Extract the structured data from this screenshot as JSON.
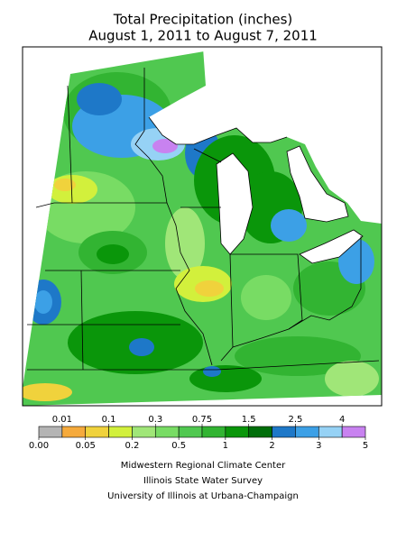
{
  "header": {
    "title": "Total Precipitation (inches)",
    "subtitle": "August 1, 2011 to August 7, 2011"
  },
  "legend": {
    "boundaries": [
      {
        "value": 0,
        "label": "0.00"
      },
      0.01,
      0.05,
      0.1,
      0.2,
      0.3,
      0.5,
      0.75,
      1,
      1.5,
      2,
      2.5,
      3,
      4,
      5
    ],
    "colors": [
      "#b4b4b4",
      "#f5aa3c",
      "#f0d23c",
      "#d2f03c",
      "#a0e678",
      "#78dc64",
      "#50c850",
      "#32b432",
      "#0a960a",
      "#006e0a",
      "#1e78c8",
      "#3ca0e6",
      "#96d2f5",
      "#c882f0"
    ]
  },
  "credits": [
    "Midwestern Regional Climate Center",
    "Illinois State Water Survey",
    "University of Illinois at Urbana-Champaign"
  ]
}
